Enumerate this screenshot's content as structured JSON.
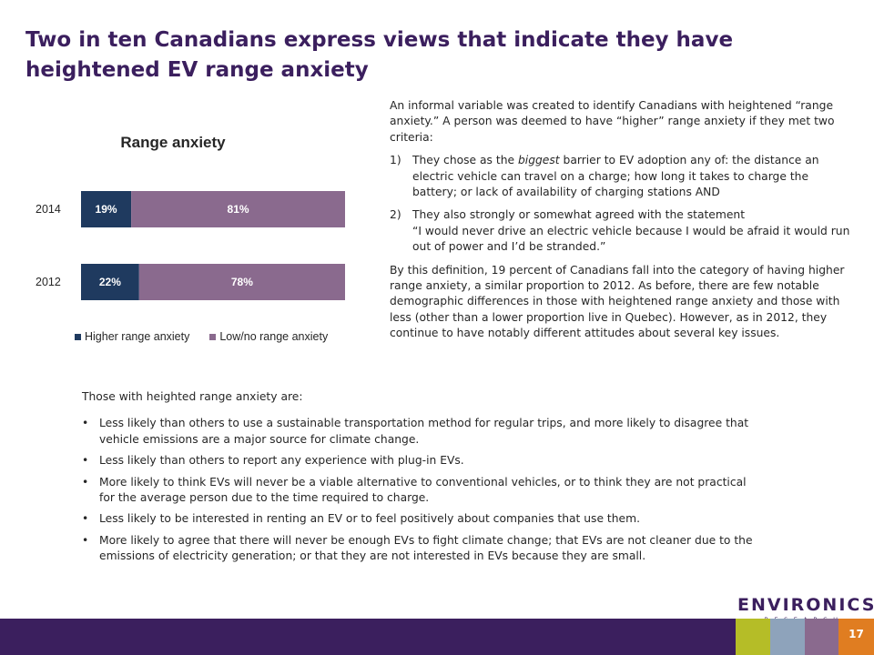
{
  "slide": {
    "title": "Two in ten Canadians express views that indicate they have heightened EV range anxiety",
    "page_number": "17"
  },
  "colors": {
    "purple": "#3b1f5e",
    "navy": "#1f3a5f",
    "mauve": "#8a6a8e",
    "green": "#b5bd27",
    "blue_grey": "#8ea3bb",
    "orange": "#e07d21"
  },
  "chart_data": {
    "type": "bar",
    "orientation": "horizontal",
    "stacked": true,
    "title": "Range anxiety",
    "categories": [
      "2014",
      "2012"
    ],
    "series": [
      {
        "name": "Higher range anxiety",
        "values": [
          19,
          22
        ],
        "labels": [
          "19%",
          "22%"
        ],
        "color": "#1f3a5f"
      },
      {
        "name": "Low/no range anxiety",
        "values": [
          81,
          78
        ],
        "labels": [
          "81%",
          "78%"
        ],
        "color": "#8a6a8e"
      }
    ],
    "xlim": [
      0,
      100
    ],
    "grid": false,
    "legend_position": "bottom"
  },
  "description": {
    "intro": "An informal variable was created to identify Canadians with heightened “range anxiety.” A person was deemed to have “higher” range anxiety if they met two criteria:",
    "criteria": [
      {
        "num": "1)",
        "before": "They chose as the ",
        "emph": "biggest",
        "after": " barrier to EV adoption any of: the distance an electric vehicle can travel on a charge; how long it takes to charge the battery; or lack of availability of charging stations AND"
      },
      {
        "num": "2)",
        "text": "They also strongly or somewhat agreed with the statement",
        "quote": "“I would never drive an electric vehicle because I would be afraid it would run out of power and I’d be stranded.”"
      }
    ],
    "conclusion": "By this definition, 19 percent of Canadians fall into the category of having higher range anxiety, a similar proportion to 2012. As before, there are few notable demographic differences in those with heightened range anxiety and those with less (other than a lower proportion live in Quebec). However, as in 2012, they continue to have notably different attitudes about several key issues."
  },
  "findings": {
    "lead": "Those with heighted range anxiety are:",
    "items": [
      "Less likely than others to use a sustainable transportation method for regular trips, and more likely to disagree that vehicle emissions are a major source for climate change.",
      "Less likely than others to report any experience with plug-in EVs.",
      "More likely to think EVs will never be a viable alternative to conventional vehicles, or to think they are not practical for the average person due to the time required to charge.",
      "Less likely to be interested in renting an EV or to feel positively about companies that use them.",
      "More likely to agree that there will never be enough EVs to fight climate change; that EVs are not cleaner due to the emissions of electricity generation; or that they are not interested in EVs because they are small."
    ]
  },
  "logo": {
    "main": "ENVIRONICS",
    "sub": "RESEARCH GROUP"
  }
}
